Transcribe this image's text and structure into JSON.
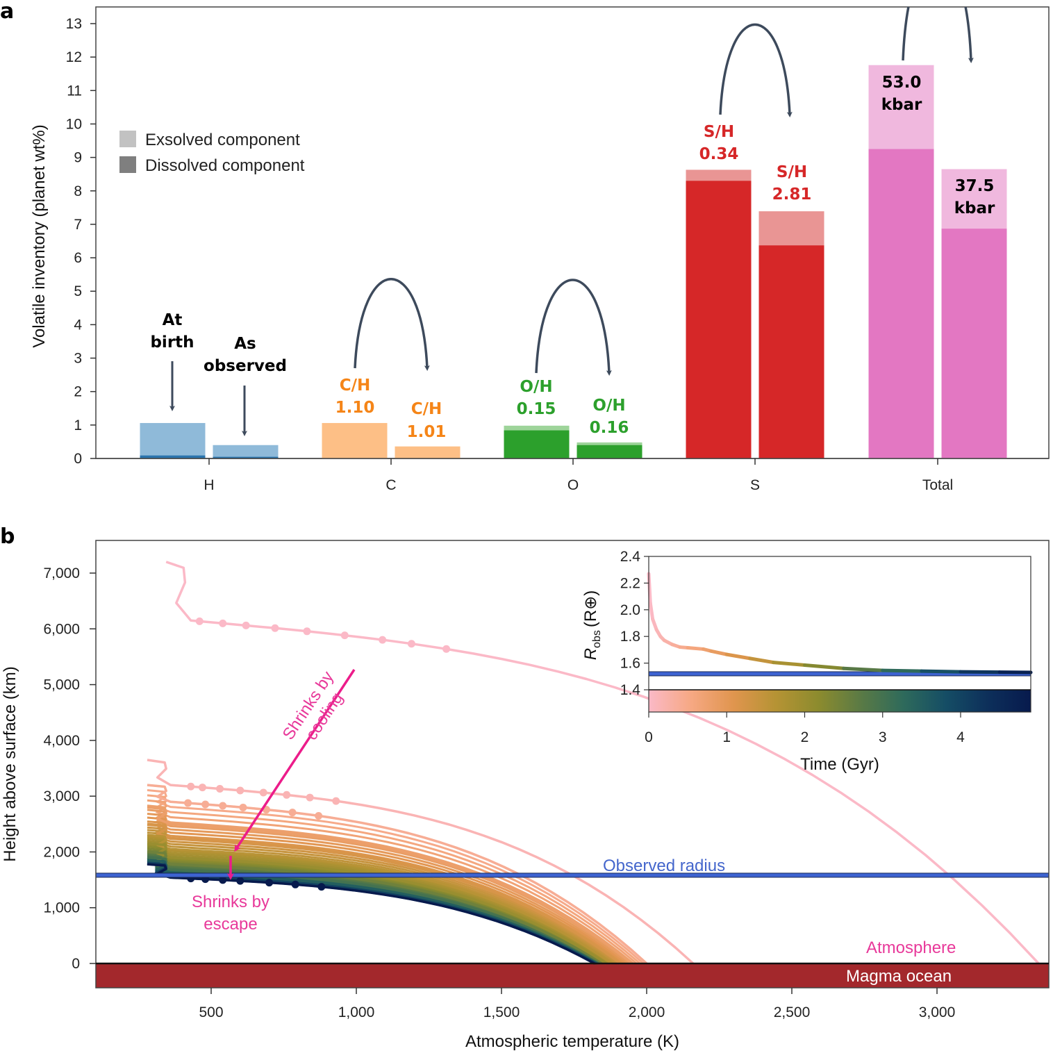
{
  "chart_data": [
    {
      "panel": "a",
      "type": "bar",
      "stacked": true,
      "ylabel": "Volatile inventory (planet wt%)",
      "xlabel": "",
      "ylim": [
        0,
        13
      ],
      "yticks": [
        0,
        1,
        2,
        3,
        4,
        5,
        6,
        7,
        8,
        9,
        10,
        11,
        12,
        13
      ],
      "categories": [
        "H",
        "C",
        "O",
        "S",
        "Total"
      ],
      "legend": {
        "position": "upper-left",
        "entries": [
          {
            "label": "Exsolved component",
            "color": "#c2c2c2"
          },
          {
            "label": "Dissolved component",
            "color": "#7f7f7f"
          }
        ]
      },
      "bar_labels": [
        "At birth",
        "As observed"
      ],
      "series": [
        {
          "category": "H",
          "stage": "At birth",
          "total": 1.06,
          "dissolved": 0.09,
          "color": "#8fbad9",
          "dissolved_color": "#2a74ad",
          "annotation": ""
        },
        {
          "category": "H",
          "stage": "As observed",
          "total": 0.4,
          "dissolved": 0.05,
          "color": "#8fbad9",
          "dissolved_color": "#2a74ad",
          "annotation": ""
        },
        {
          "category": "C",
          "stage": "At birth",
          "total": 1.06,
          "dissolved": 0.0,
          "color": "#fdbf86",
          "dissolved_color": "#fdbf86",
          "annotation": "C/H 1.10"
        },
        {
          "category": "C",
          "stage": "As observed",
          "total": 0.36,
          "dissolved": 0.0,
          "color": "#fdbf86",
          "dissolved_color": "#fdbf86",
          "annotation": "C/H 1.01"
        },
        {
          "category": "O",
          "stage": "At birth",
          "total": 0.98,
          "dissolved": 0.84,
          "color": "#9ed49a",
          "dissolved_color": "#2ca02c",
          "annotation": "O/H 0.15"
        },
        {
          "category": "O",
          "stage": "As observed",
          "total": 0.48,
          "dissolved": 0.4,
          "color": "#9ed49a",
          "dissolved_color": "#2ca02c",
          "annotation": "O/H 0.16"
        },
        {
          "category": "S",
          "stage": "At birth",
          "total": 8.63,
          "dissolved": 8.3,
          "color": "#e99594",
          "dissolved_color": "#d62728",
          "annotation": "S/H 0.34"
        },
        {
          "category": "S",
          "stage": "As observed",
          "total": 7.39,
          "dissolved": 6.37,
          "color": "#e99594",
          "dissolved_color": "#d62728",
          "annotation": "S/H 2.81"
        },
        {
          "category": "Total",
          "stage": "At birth",
          "total": 11.76,
          "dissolved": 9.25,
          "color": "#f0b8de",
          "dissolved_color": "#e377c2",
          "annotation": "53.0 kbar"
        },
        {
          "category": "Total",
          "stage": "As observed",
          "total": 8.65,
          "dissolved": 6.87,
          "color": "#f0b8de",
          "dissolved_color": "#e377c2",
          "annotation": "37.5 kbar"
        }
      ],
      "annotations": {
        "at_birth": [
          "At",
          "birth"
        ],
        "as_observed": [
          "As",
          "observed"
        ],
        "ratios": [
          {
            "cat": "C",
            "birth": [
              "C/H",
              "1.10"
            ],
            "obs": [
              "C/H",
              "1.01"
            ],
            "color": "#f58518"
          },
          {
            "cat": "O",
            "birth": [
              "O/H",
              "0.15"
            ],
            "obs": [
              "O/H",
              "0.16"
            ],
            "color": "#2ca02c"
          },
          {
            "cat": "S",
            "birth": [
              "S/H",
              "0.34"
            ],
            "obs": [
              "S/H",
              "2.81"
            ],
            "color": "#d62728"
          },
          {
            "cat": "Total",
            "birth": [
              "53.0",
              "kbar"
            ],
            "obs": [
              "37.5",
              "kbar"
            ],
            "color": "#000000"
          }
        ]
      }
    },
    {
      "panel": "b",
      "type": "line",
      "xlabel": "Atmospheric temperature (K)",
      "ylabel": "Height above surface (km)",
      "xlim": [
        100,
        3390
      ],
      "ylim": [
        -420,
        7580
      ],
      "xticks": [
        500,
        1000,
        1500,
        2000,
        2500,
        3000
      ],
      "xtick_labels": [
        "500",
        "1,000",
        "1,500",
        "2,000",
        "2,500",
        "3,000"
      ],
      "yticks": [
        0,
        1000,
        2000,
        3000,
        4000,
        5000,
        6000,
        7000
      ],
      "ytick_labels": [
        "0",
        "1,000",
        "2,000",
        "3,000",
        "4,000",
        "5,000",
        "6,000",
        "7,000"
      ],
      "observed_radius_km": 1570,
      "annotations": {
        "observed_radius": "Observed radius",
        "atmosphere": "Atmosphere",
        "magma_ocean": "Magma ocean",
        "cooling": [
          "Shrinks by",
          "cooling"
        ],
        "escape": [
          "Shrinks by",
          "escape"
        ]
      },
      "colormap": [
        "#fbb9c7",
        "#f6a883",
        "#e0954e",
        "#b59334",
        "#8c8b2e",
        "#5a7a45",
        "#2e6a5b",
        "#154d65",
        "#0d2f5a",
        "#071a4d"
      ],
      "profiles": [
        {
          "time_gyr": 0.0,
          "x_start": 345,
          "top_km": 7200,
          "knee_km": 6150,
          "knee_T": 400,
          "surface_T": 3350,
          "markers_T": [
            460,
            540,
            620,
            720,
            830,
            960,
            1090,
            1190,
            1310
          ]
        },
        {
          "time_gyr": 0.15,
          "x_start": 280,
          "top_km": 3650,
          "knee_km": 3200,
          "knee_T": 330,
          "surface_T": 2160,
          "markers_T": [
            430,
            470,
            530,
            600,
            680,
            760,
            840,
            930
          ]
        },
        {
          "time_gyr": 0.4,
          "x_start": 280,
          "top_km": 3200,
          "knee_km": 2900,
          "knee_T": 330,
          "surface_T": 2000,
          "markers_T": [
            420,
            480,
            540,
            610,
            690,
            780,
            870
          ]
        },
        {
          "time_gyr": 0.8,
          "x_start": 280,
          "top_km": 2800,
          "knee_km": 2500,
          "knee_T": 330,
          "surface_T": 1950,
          "markers_T": []
        },
        {
          "time_gyr": 1.2,
          "x_start": 280,
          "top_km": 2500,
          "knee_km": 2250,
          "knee_T": 330,
          "surface_T": 1910,
          "markers_T": []
        },
        {
          "time_gyr": 1.6,
          "x_start": 280,
          "top_km": 2300,
          "knee_km": 2050,
          "knee_T": 330,
          "surface_T": 1880,
          "markers_T": []
        },
        {
          "time_gyr": 2.0,
          "x_start": 280,
          "top_km": 2150,
          "knee_km": 1900,
          "knee_T": 330,
          "surface_T": 1860,
          "markers_T": []
        },
        {
          "time_gyr": 2.5,
          "x_start": 280,
          "top_km": 2000,
          "knee_km": 1780,
          "knee_T": 330,
          "surface_T": 1845,
          "markers_T": []
        },
        {
          "time_gyr": 3.0,
          "x_start": 280,
          "top_km": 1900,
          "knee_km": 1680,
          "knee_T": 330,
          "surface_T": 1835,
          "markers_T": []
        },
        {
          "time_gyr": 3.5,
          "x_start": 280,
          "top_km": 1850,
          "knee_km": 1620,
          "knee_T": 330,
          "surface_T": 1830,
          "markers_T": []
        },
        {
          "time_gyr": 4.0,
          "x_start": 280,
          "top_km": 1800,
          "knee_km": 1570,
          "knee_T": 330,
          "surface_T": 1825,
          "markers_T": []
        },
        {
          "time_gyr": 4.9,
          "x_start": 280,
          "top_km": 1780,
          "knee_km": 1540,
          "knee_T": 330,
          "surface_T": 1820,
          "markers_T": [
            430,
            480,
            540,
            600,
            700,
            790,
            880
          ]
        }
      ],
      "inset": {
        "type": "line",
        "xlabel": "Time (Gyr)",
        "ylabel": "R_obs (R_⊕)",
        "ylabel_main": "R",
        "ylabel_sub": "obs",
        "ylabel_unit": "(R⊕)",
        "xlim": [
          0,
          4.9
        ],
        "ylim": [
          1.25,
          2.4
        ],
        "xticks": [
          0,
          1,
          2,
          3,
          4
        ],
        "yticks": [
          1.4,
          1.6,
          1.8,
          2.0,
          2.2,
          2.4
        ],
        "ytick_labels": [
          "1.4",
          "1.6",
          "1.8",
          "2.0",
          "2.2",
          "2.4"
        ],
        "observed_radius": 1.52,
        "series": {
          "t": [
            0.0,
            0.02,
            0.05,
            0.1,
            0.15,
            0.2,
            0.3,
            0.4,
            0.5,
            0.7,
            0.8,
            1.0,
            1.3,
            1.6,
            2.0,
            2.5,
            3.0,
            3.5,
            4.0,
            4.5,
            4.9
          ],
          "r": [
            2.27,
            2.05,
            1.93,
            1.85,
            1.8,
            1.77,
            1.74,
            1.72,
            1.715,
            1.705,
            1.69,
            1.665,
            1.635,
            1.605,
            1.585,
            1.56,
            1.545,
            1.54,
            1.535,
            1.532,
            1.53
          ]
        }
      }
    }
  ],
  "panel_labels": {
    "a": "a",
    "b": "b"
  }
}
